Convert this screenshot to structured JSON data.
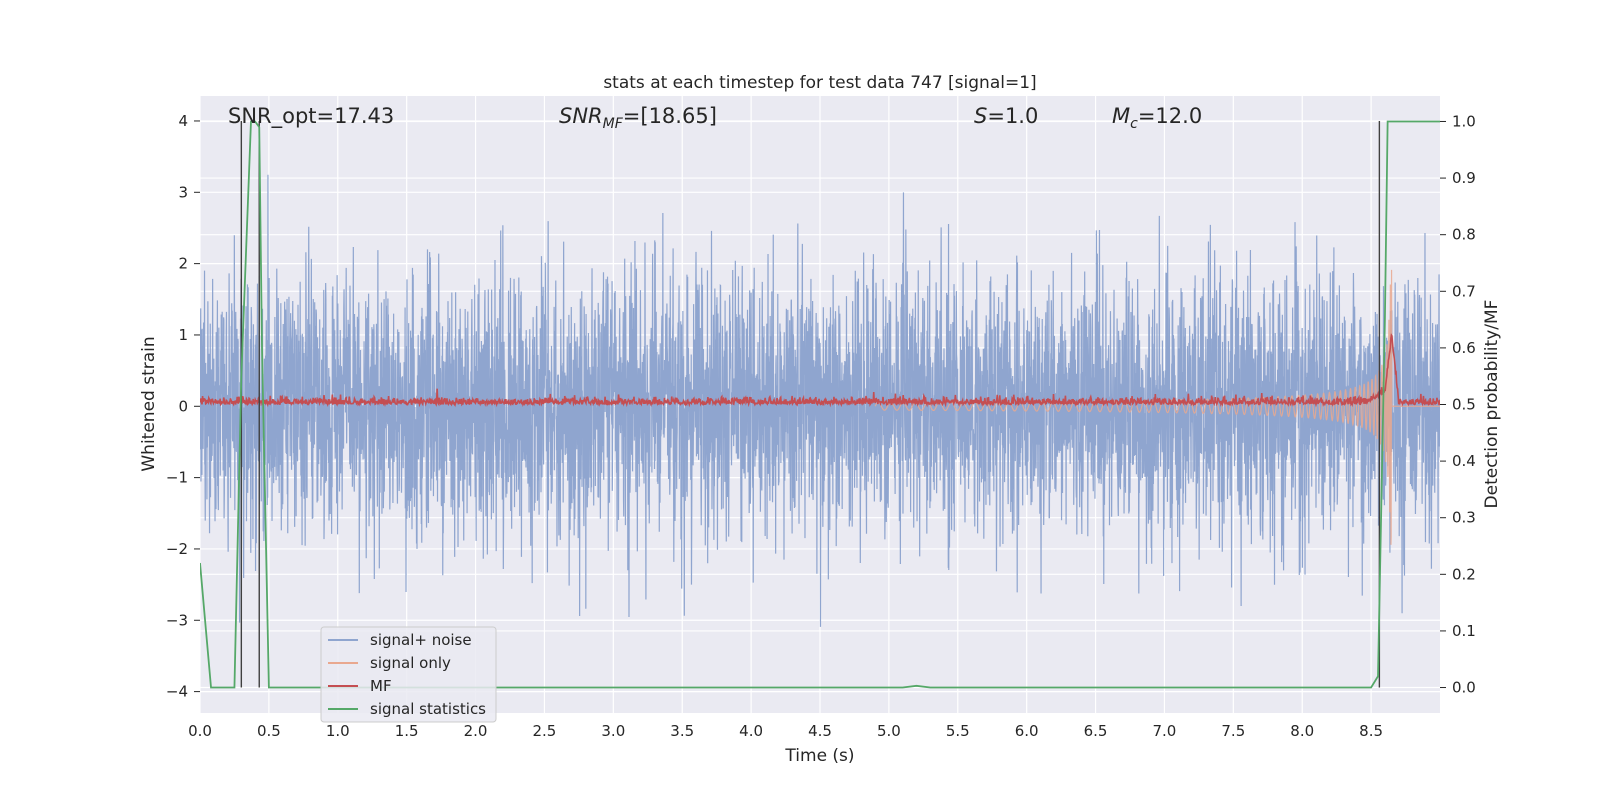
{
  "chart_data": {
    "type": "line",
    "title": "stats at each timestep for test data 747 [signal=1]",
    "xlabel": "Time (s)",
    "ylabel_left": "Whitened strain",
    "ylabel_right": "Detection probability/MF",
    "xlim": [
      0.0,
      9.0
    ],
    "ylim_left": [
      -4.3,
      4.35
    ],
    "ylim_right": [
      -0.045,
      1.045
    ],
    "x_ticks": [
      "0.0",
      "0.5",
      "1.0",
      "1.5",
      "2.0",
      "2.5",
      "3.0",
      "3.5",
      "4.0",
      "4.5",
      "5.0",
      "5.5",
      "6.0",
      "6.5",
      "7.0",
      "7.5",
      "8.0",
      "8.5"
    ],
    "y_left_ticks": [
      "−4",
      "−3",
      "−2",
      "−1",
      "0",
      "1",
      "2",
      "3",
      "4"
    ],
    "y_right_ticks": [
      "0.0",
      "0.1",
      "0.2",
      "0.3",
      "0.4",
      "0.5",
      "0.6",
      "0.7",
      "0.8",
      "0.9",
      "1.0"
    ],
    "grid": true,
    "legend_position": "lower-left",
    "annotations": {
      "snr_opt": "SNR_opt=17.43",
      "snr_mf_sym": "SNR",
      "snr_mf_sub": "MF",
      "snr_mf_val": "=[18.65]",
      "s_sym": "S",
      "s_val": "=1.0",
      "mc_sym": "M",
      "mc_sub": "c",
      "mc_val": "=12.0"
    },
    "vertical_markers_s": [
      0.3,
      0.43,
      8.56
    ],
    "series": [
      {
        "name": "signal+ noise",
        "color": "#8fa5cf",
        "axis": "left",
        "description": "whitened noise, spikes up to about ±3; roughly uniform 0–9 s"
      },
      {
        "name": "signal only",
        "color": "#e9a88f",
        "axis": "left",
        "description": "chirp oscillation growing from ~0.05 at 5 s to ~±3 at 8.65 s, then stops"
      },
      {
        "name": "MF",
        "color": "#c44e52",
        "axis": "right",
        "x": [
          0.0,
          8.45,
          8.6,
          8.65,
          8.7,
          9.0
        ],
        "values": [
          0.5,
          0.5,
          0.52,
          0.62,
          0.5,
          0.5
        ]
      },
      {
        "name": "signal statistics",
        "color": "#55a868",
        "axis": "right",
        "x": [
          0.0,
          0.08,
          0.25,
          0.3,
          0.37,
          0.4,
          0.43,
          0.45,
          0.5,
          5.1,
          5.2,
          5.3,
          7.4,
          8.5,
          8.55,
          8.6,
          8.62,
          9.0
        ],
        "values": [
          0.22,
          0.0,
          0.0,
          0.55,
          1.0,
          1.0,
          0.99,
          0.6,
          0.0,
          0.0,
          0.003,
          0.0,
          0.0,
          0.0,
          0.02,
          0.65,
          1.0,
          1.0
        ]
      }
    ]
  }
}
